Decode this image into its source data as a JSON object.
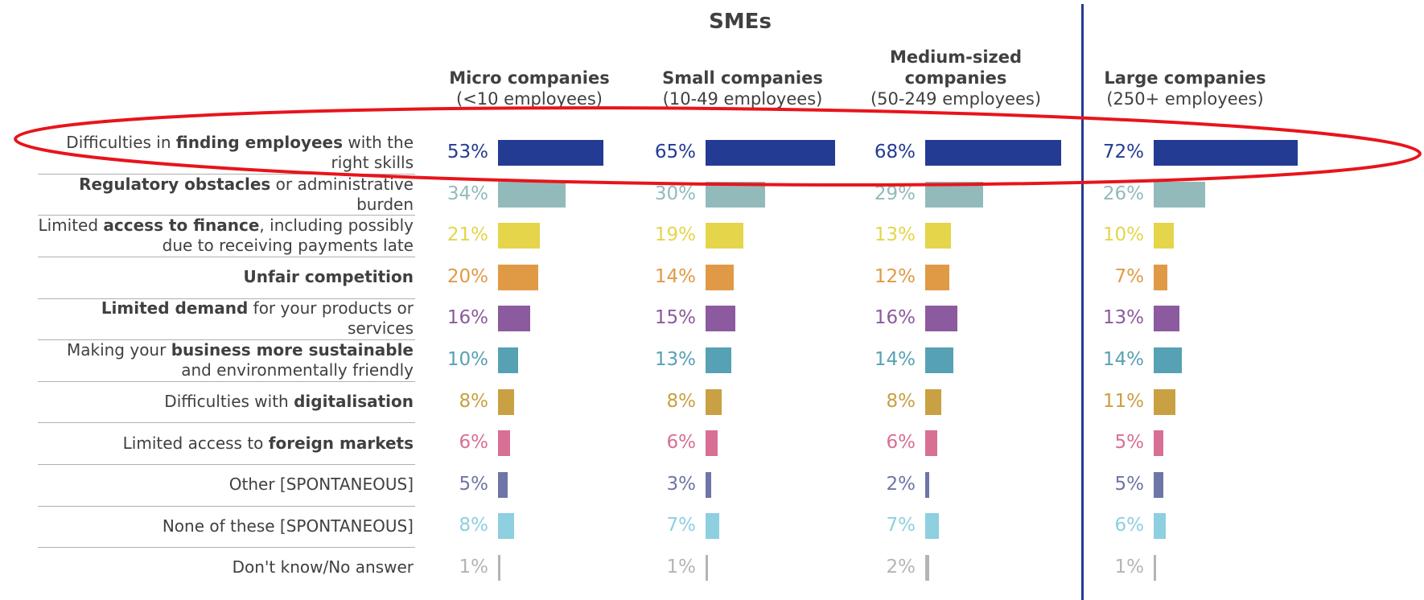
{
  "chart_data": {
    "type": "bar",
    "group_title": "SMEs",
    "categories": [
      [
        {
          "text": "Difficulties in "
        },
        {
          "text": "finding employees",
          "bold": true
        },
        {
          "text": " with the right skills"
        }
      ],
      [
        {
          "text": "Regulatory obstacles",
          "bold": true
        },
        {
          "text": " or administrative burden"
        }
      ],
      [
        {
          "text": "Limited "
        },
        {
          "text": "access to finance",
          "bold": true
        },
        {
          "text": ", including possibly due to receiving payments late"
        }
      ],
      [
        {
          "text": "Unfair competition",
          "bold": true
        }
      ],
      [
        {
          "text": "Limited demand",
          "bold": true
        },
        {
          "text": " for your products  or services"
        }
      ],
      [
        {
          "text": "Making your "
        },
        {
          "text": "business more sustainable",
          "bold": true
        },
        {
          "text": " and environmentally friendly"
        }
      ],
      [
        {
          "text": "Difficulties with "
        },
        {
          "text": "digitalisation",
          "bold": true
        }
      ],
      [
        {
          "text": "Limited access to "
        },
        {
          "text": "foreign markets",
          "bold": true
        }
      ],
      [
        {
          "text": "Other [SPONTANEOUS]"
        }
      ],
      [
        {
          "text": "None of these [SPONTANEOUS]"
        }
      ],
      [
        {
          "text": "Don't know/No answer"
        }
      ]
    ],
    "colors": [
      "#233b93",
      "#92babb",
      "#e4d54a",
      "#e09a45",
      "#8c5a9e",
      "#57a1b5",
      "#c9a043",
      "#d86f95",
      "#6e75a7",
      "#8ecfe0",
      "#b4b4b4"
    ],
    "series": [
      {
        "name": "Micro companies",
        "subtitle": "(<10 employees)",
        "values": [
          53,
          34,
          21,
          20,
          16,
          10,
          8,
          6,
          5,
          8,
          1
        ],
        "value_labels": [
          "53%",
          "34%",
          "21%",
          "20%",
          "16%",
          "10%",
          "8%",
          "6%",
          "5%",
          "8%",
          "1%"
        ]
      },
      {
        "name": "Small companies",
        "subtitle": "(10-49 employees)",
        "values": [
          65,
          30,
          19,
          14,
          15,
          13,
          8,
          6,
          3,
          7,
          1
        ],
        "value_labels": [
          "65%",
          "30%",
          "19%",
          "14%",
          "15%",
          "13%",
          "8%",
          "6%",
          "3%",
          "7%",
          "1%"
        ]
      },
      {
        "name": "Medium-sized companies",
        "subtitle": "(50-249 employees)",
        "values": [
          68,
          29,
          13,
          12,
          16,
          14,
          8,
          6,
          2,
          7,
          2
        ],
        "value_labels": [
          "68%",
          "29%",
          "13%",
          "12%",
          "16%",
          "14%",
          "8%",
          "6%",
          "2%",
          "7%",
          "2%"
        ]
      },
      {
        "name": "Large companies",
        "subtitle": "(250+ employees)",
        "values": [
          72,
          26,
          10,
          7,
          13,
          14,
          11,
          5,
          5,
          6,
          1
        ],
        "value_labels": [
          "72%",
          "26%",
          "10%",
          "7%",
          "13%",
          "14%",
          "11%",
          "5%",
          "5%",
          "6%",
          "1%"
        ]
      }
    ]
  }
}
